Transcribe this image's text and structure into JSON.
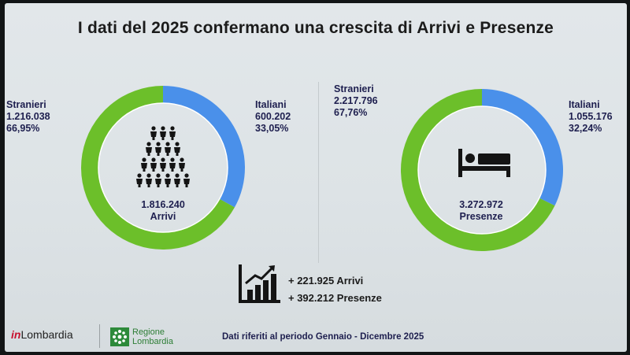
{
  "title": "I dati del 2025 confermano una crescita di Arrivi e Presenze",
  "colors": {
    "green": "#6cbf2a",
    "blue": "#4a90ea",
    "text": "#1e1f4f"
  },
  "chart_data": [
    {
      "type": "pie",
      "variant": "donut",
      "center": {
        "value": "1.816.240",
        "label": "Arrivi"
      },
      "icon": "people-group-icon",
      "slices": [
        {
          "name": "Italiani",
          "value": "600.202",
          "pct": "33,05%",
          "pct_num": 33.05,
          "color": "#4a90ea"
        },
        {
          "name": "Stranieri",
          "value": "1.216.038",
          "pct": "66,95%",
          "pct_num": 66.95,
          "color": "#6cbf2a"
        }
      ]
    },
    {
      "type": "pie",
      "variant": "donut",
      "center": {
        "value": "3.272.972",
        "label": "Presenze"
      },
      "icon": "bed-icon",
      "slices": [
        {
          "name": "Italiani",
          "value": "1.055.176",
          "pct": "32,24%",
          "pct_num": 32.24,
          "color": "#4a90ea"
        },
        {
          "name": "Stranieri",
          "value": "2.217.796",
          "pct": "67,76%",
          "pct_num": 67.76,
          "color": "#6cbf2a"
        }
      ]
    }
  ],
  "growth": {
    "icon": "growth-chart-icon",
    "arrivi": "+ 221.925 Arrivi",
    "presenze": "+ 392.212 Presenze"
  },
  "logos": {
    "inlombardia_prefix": "in",
    "inlombardia_name": "Lombardia",
    "regione_line1": "Regione",
    "regione_line2": "Lombardia"
  },
  "footer": "Dati riferiti al periodo Gennaio - Dicembre 2025"
}
